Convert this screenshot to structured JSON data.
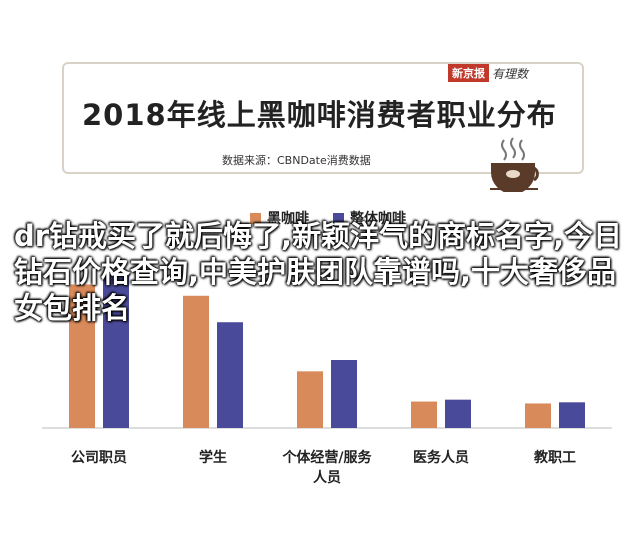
{
  "header": {
    "title": "2018年线上黑咖啡消费者职业分布",
    "source": "数据来源：CBNDate消费数据",
    "logo_text": "新京报",
    "logo_script": "有理数"
  },
  "overlay_text": "dr钻戒买了就后悔了,新颖洋气的商标名字,今日钻石价格查询,中美护肤团队靠谱吗,十大奢侈品女包排名",
  "chart_data": {
    "type": "bar",
    "title": "2018年线上黑咖啡消费者职业分布",
    "categories": [
      "公司职员",
      "学生",
      "个体经营/服务人员",
      "医务人员",
      "教职工"
    ],
    "category_lines": [
      [
        "公司职员"
      ],
      [
        "学生"
      ],
      [
        "个体经营/服务",
        "人员"
      ],
      [
        "医务人员"
      ],
      [
        "教职工"
      ]
    ],
    "series": [
      {
        "name": "黑咖啡",
        "color": "#d98a5a",
        "values": [
          38,
          35,
          15,
          7,
          6.5
        ]
      },
      {
        "name": "整体咖啡",
        "color": "#4a4a9a",
        "values": [
          41,
          28,
          18,
          7.5,
          6.8
        ]
      }
    ],
    "ylim": [
      0,
      45
    ],
    "grid": false,
    "legend_position": "top"
  }
}
